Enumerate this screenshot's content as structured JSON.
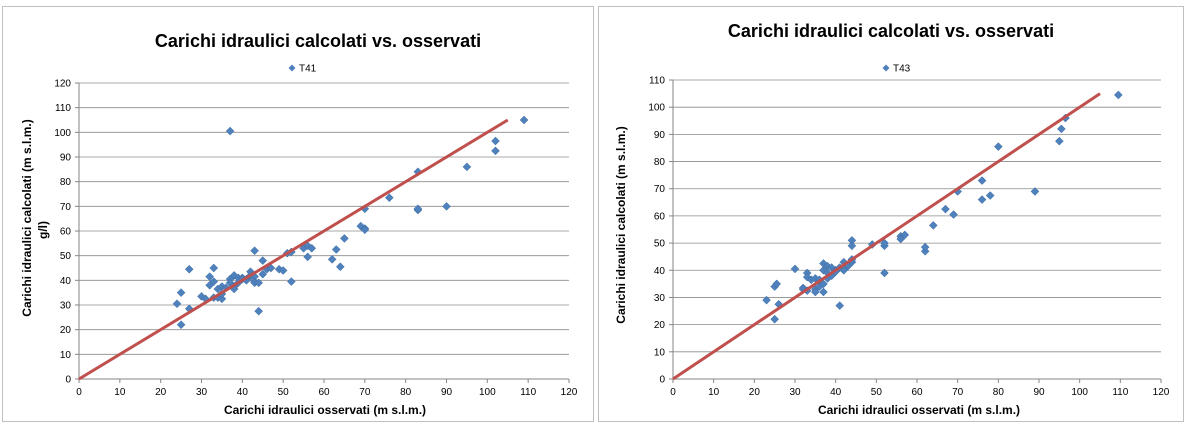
{
  "chart_data": [
    {
      "type": "scatter",
      "title": "Carichi idraulici calcolati vs. osservati",
      "xlabel": "Carichi idraulici osservati (m s.l.m.)",
      "ylabel": "Carichi idraulici calcolati (m s.l.m.)",
      "ylabel_extra": "g/l)",
      "xlim": [
        0,
        120
      ],
      "ylim": [
        0,
        120
      ],
      "xticks": [
        0,
        10,
        20,
        30,
        40,
        50,
        60,
        70,
        80,
        90,
        100,
        110,
        120
      ],
      "yticks": [
        0,
        10,
        20,
        30,
        40,
        50,
        60,
        70,
        80,
        90,
        100,
        110,
        120
      ],
      "grid": "horizontal",
      "legend_position": "top-center",
      "series": [
        {
          "name": "T41",
          "color": "#4f81bd",
          "marker": "diamond",
          "points": [
            [
              24,
              30.5
            ],
            [
              25,
              22
            ],
            [
              25,
              35
            ],
            [
              27,
              44.5
            ],
            [
              27,
              28.5
            ],
            [
              30,
              33.5
            ],
            [
              31,
              32.5
            ],
            [
              32,
              41.5
            ],
            [
              32,
              38
            ],
            [
              33,
              33
            ],
            [
              33,
              45
            ],
            [
              33,
              39.5
            ],
            [
              34,
              33
            ],
            [
              34,
              36.5
            ],
            [
              35,
              32.5
            ],
            [
              35,
              34.5
            ],
            [
              35,
              37.5
            ],
            [
              36,
              37
            ],
            [
              37,
              100.5
            ],
            [
              37,
              40.5
            ],
            [
              37,
              39
            ],
            [
              38,
              37.5
            ],
            [
              38,
              42
            ],
            [
              38,
              36.5
            ],
            [
              39,
              39
            ],
            [
              39,
              41
            ],
            [
              40,
              41
            ],
            [
              40,
              40.5
            ],
            [
              41,
              40.5
            ],
            [
              41,
              40
            ],
            [
              42,
              43.5
            ],
            [
              42,
              41.5
            ],
            [
              42,
              42
            ],
            [
              43,
              41.5
            ],
            [
              43,
              52
            ],
            [
              43,
              39.5
            ],
            [
              43,
              39
            ],
            [
              44,
              27.5
            ],
            [
              44,
              39
            ],
            [
              45,
              48
            ],
            [
              45,
              42.5
            ],
            [
              46,
              44.5
            ],
            [
              47,
              45
            ],
            [
              49,
              44.5
            ],
            [
              50,
              44
            ],
            [
              51,
              51
            ],
            [
              52,
              51.5
            ],
            [
              52,
              39.5
            ],
            [
              55,
              53
            ],
            [
              56,
              49.5
            ],
            [
              56,
              54
            ],
            [
              57,
              53
            ],
            [
              62,
              48.5
            ],
            [
              63,
              52.5
            ],
            [
              64,
              45.5
            ],
            [
              65,
              57
            ],
            [
              69,
              62
            ],
            [
              70,
              61
            ],
            [
              70,
              60.5
            ],
            [
              70,
              69
            ],
            [
              76,
              73.5
            ],
            [
              83,
              68.5
            ],
            [
              83,
              69
            ],
            [
              83,
              84
            ],
            [
              90,
              70
            ],
            [
              95,
              86
            ],
            [
              102,
              96.5
            ],
            [
              102,
              92.5
            ],
            [
              109,
              105
            ]
          ]
        },
        {
          "name": "",
          "color": "#c0504d",
          "style": "line",
          "points": [
            [
              0,
              0
            ],
            [
              105,
              105
            ]
          ]
        }
      ]
    },
    {
      "type": "scatter",
      "title": "Carichi idraulici calcolati vs. osservati",
      "xlabel": "Carichi idraulici osservati (m s.l.m.)",
      "ylabel": "Carichi idraulici calcolati (m s.l.m.)",
      "xlim": [
        0,
        120
      ],
      "ylim": [
        0,
        110
      ],
      "xticks": [
        0,
        10,
        20,
        30,
        40,
        50,
        60,
        70,
        80,
        90,
        100,
        110,
        120
      ],
      "yticks": [
        0,
        10,
        20,
        30,
        40,
        50,
        60,
        70,
        80,
        90,
        100,
        110
      ],
      "grid": "horizontal",
      "legend_position": "top-center",
      "series": [
        {
          "name": "T43",
          "color": "#4f81bd",
          "marker": "diamond",
          "points": [
            [
              23,
              29
            ],
            [
              25,
              22
            ],
            [
              25,
              34
            ],
            [
              25.5,
              35
            ],
            [
              26,
              27.5
            ],
            [
              30,
              40.5
            ],
            [
              32,
              33.5
            ],
            [
              32,
              33
            ],
            [
              33,
              39
            ],
            [
              33,
              37.5
            ],
            [
              33,
              32.5
            ],
            [
              34,
              36.5
            ],
            [
              35,
              37
            ],
            [
              35,
              33
            ],
            [
              35,
              32
            ],
            [
              36,
              36.5
            ],
            [
              36,
              34
            ],
            [
              37,
              35
            ],
            [
              37,
              40
            ],
            [
              37,
              32
            ],
            [
              37,
              42.5
            ],
            [
              38,
              41.5
            ],
            [
              38,
              39
            ],
            [
              38,
              37
            ],
            [
              39,
              38
            ],
            [
              39,
              41
            ],
            [
              40,
              40
            ],
            [
              40,
              39.5
            ],
            [
              41,
              27
            ],
            [
              41,
              41
            ],
            [
              42,
              43
            ],
            [
              42,
              40
            ],
            [
              43,
              41.5
            ],
            [
              43,
              42
            ],
            [
              44,
              43
            ],
            [
              44,
              44
            ],
            [
              44,
              51
            ],
            [
              44,
              49
            ],
            [
              49,
              49.5
            ],
            [
              52,
              49
            ],
            [
              52,
              39
            ],
            [
              52,
              50
            ],
            [
              56,
              52.5
            ],
            [
              56,
              51.5
            ],
            [
              57,
              53
            ],
            [
              62,
              47
            ],
            [
              62,
              48.5
            ],
            [
              64,
              56.5
            ],
            [
              67,
              62.5
            ],
            [
              69,
              60.5
            ],
            [
              70,
              69
            ],
            [
              76,
              73
            ],
            [
              76,
              66
            ],
            [
              78,
              67.5
            ],
            [
              80,
              85.5
            ],
            [
              89,
              69
            ],
            [
              95,
              87.5
            ],
            [
              95.5,
              92
            ],
            [
              96.5,
              96
            ],
            [
              109.5,
              104.5
            ]
          ]
        },
        {
          "name": "",
          "color": "#c0504d",
          "style": "line",
          "points": [
            [
              0,
              0
            ],
            [
              105,
              105
            ]
          ]
        }
      ]
    }
  ]
}
